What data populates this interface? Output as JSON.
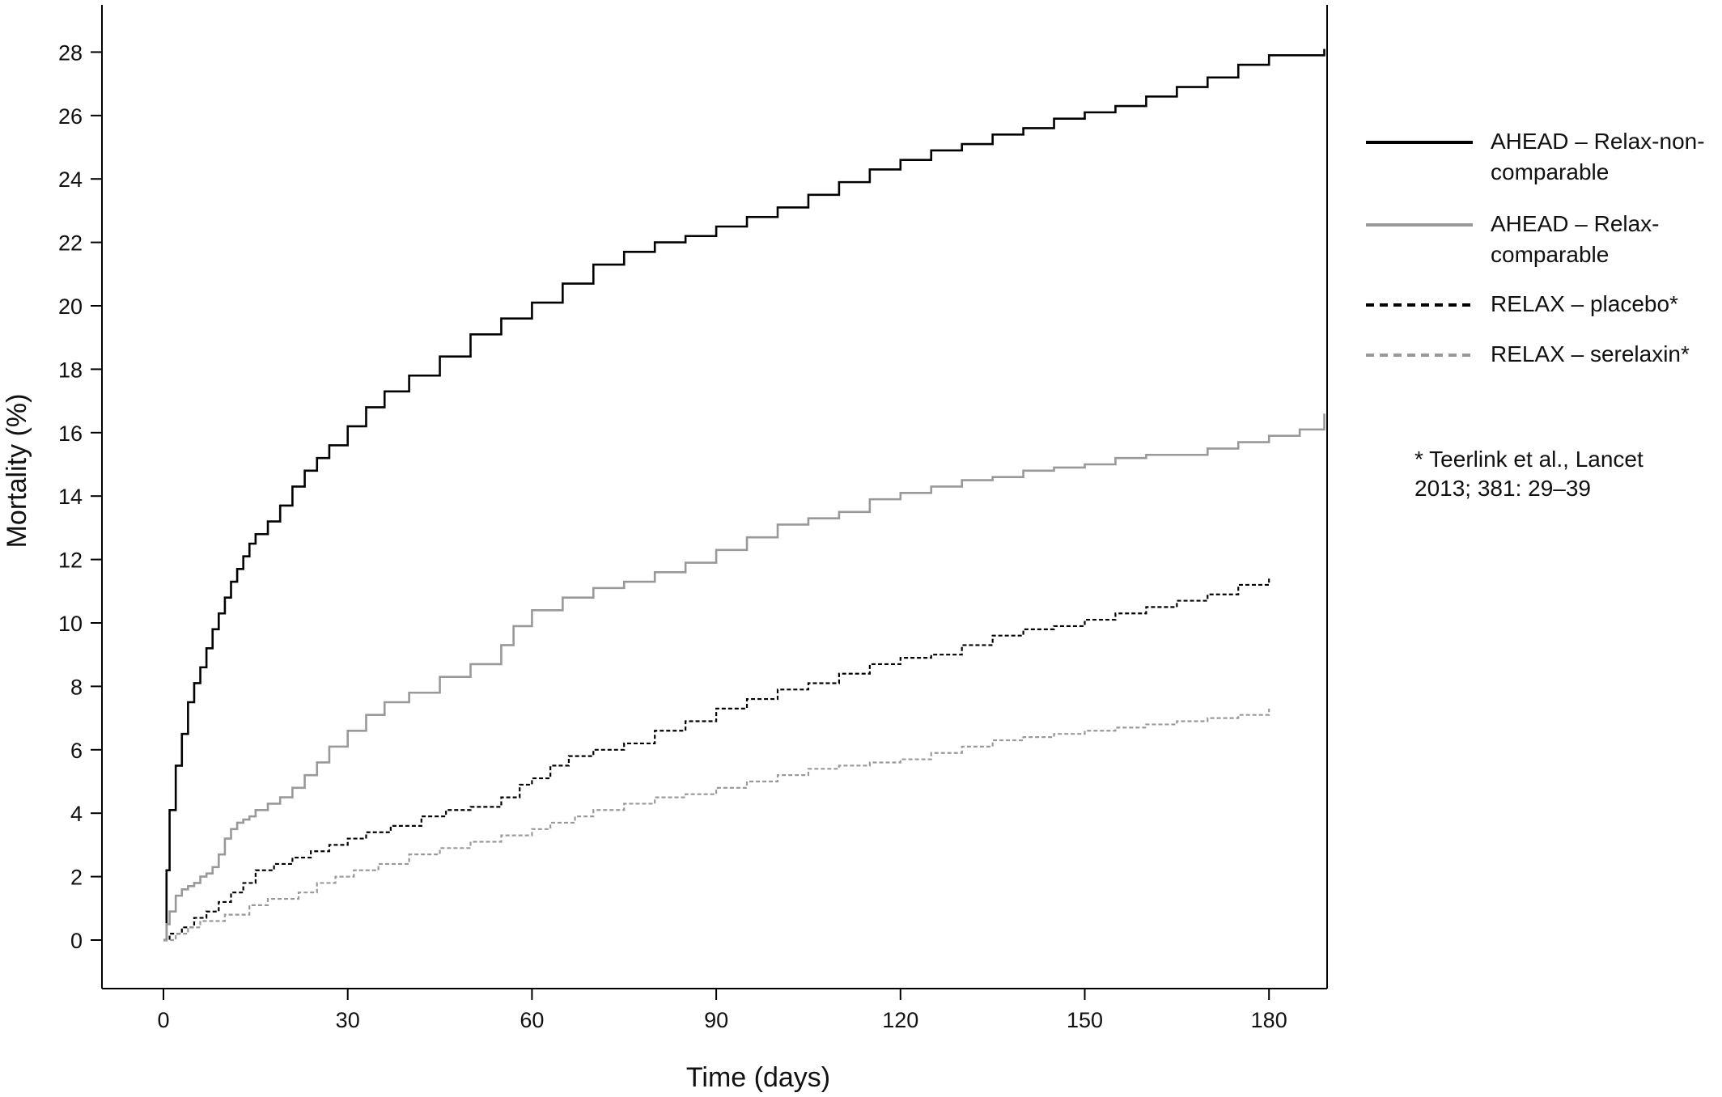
{
  "chart_data": {
    "type": "line",
    "title": "",
    "xlabel": "Time (days)",
    "ylabel": "Mortality (%)",
    "xlim": [
      -10,
      189
    ],
    "ylim": [
      -1.7,
      29.5
    ],
    "x_ticks": [
      0,
      30,
      60,
      90,
      120,
      150,
      180
    ],
    "y_ticks": [
      0,
      2,
      4,
      6,
      8,
      10,
      12,
      14,
      16,
      18,
      20,
      22,
      24,
      26,
      28
    ],
    "x_tick_labels": [
      "0",
      "30",
      "60",
      "90",
      "120",
      "150",
      "180"
    ],
    "y_tick_labels": [
      "0",
      "2",
      "4",
      "6",
      "8",
      "10",
      "12",
      "14",
      "16",
      "18",
      "20",
      "22",
      "24",
      "26",
      "28"
    ],
    "grid": false,
    "step": true,
    "legend_position": "right",
    "series": [
      {
        "name": "AHEAD – Relax-non-\ncomparable",
        "color": "#000000",
        "dash": "solid",
        "x": [
          0,
          0.5,
          1,
          2,
          3,
          4,
          5,
          6,
          7,
          8,
          9,
          10,
          11,
          12,
          13,
          14,
          15,
          17,
          19,
          21,
          23,
          25,
          27,
          30,
          33,
          36,
          40,
          45,
          50,
          55,
          60,
          65,
          70,
          75,
          80,
          85,
          90,
          95,
          100,
          105,
          110,
          115,
          120,
          125,
          130,
          135,
          140,
          145,
          150,
          155,
          160,
          165,
          170,
          175,
          180,
          189
        ],
        "y": [
          0,
          2.2,
          4.1,
          5.5,
          6.5,
          7.5,
          8.1,
          8.6,
          9.2,
          9.8,
          10.3,
          10.8,
          11.3,
          11.7,
          12.1,
          12.5,
          12.8,
          13.2,
          13.7,
          14.3,
          14.8,
          15.2,
          15.6,
          16.2,
          16.8,
          17.3,
          17.8,
          18.4,
          19.1,
          19.6,
          20.1,
          20.7,
          21.3,
          21.7,
          22.0,
          22.2,
          22.5,
          22.8,
          23.1,
          23.5,
          23.9,
          24.3,
          24.6,
          24.9,
          25.1,
          25.4,
          25.6,
          25.9,
          26.1,
          26.3,
          26.6,
          26.9,
          27.2,
          27.6,
          27.9,
          28.1
        ]
      },
      {
        "name": "AHEAD – Relax-\ncomparable",
        "color": "#999999",
        "dash": "solid",
        "x": [
          0,
          0.5,
          1,
          2,
          3,
          4,
          5,
          6,
          7,
          8,
          9,
          10,
          11,
          12,
          13,
          14,
          15,
          17,
          19,
          21,
          23,
          25,
          27,
          30,
          33,
          36,
          40,
          45,
          50,
          55,
          57,
          60,
          65,
          70,
          75,
          80,
          85,
          90,
          95,
          100,
          105,
          110,
          115,
          120,
          125,
          130,
          135,
          140,
          145,
          150,
          155,
          160,
          165,
          170,
          175,
          180,
          185,
          189
        ],
        "y": [
          0,
          0.5,
          0.9,
          1.4,
          1.6,
          1.7,
          1.8,
          2.0,
          2.1,
          2.3,
          2.7,
          3.2,
          3.5,
          3.7,
          3.8,
          3.9,
          4.1,
          4.3,
          4.5,
          4.8,
          5.2,
          5.6,
          6.1,
          6.6,
          7.1,
          7.5,
          7.8,
          8.3,
          8.7,
          9.3,
          9.9,
          10.4,
          10.8,
          11.1,
          11.3,
          11.6,
          11.9,
          12.3,
          12.7,
          13.1,
          13.3,
          13.5,
          13.9,
          14.1,
          14.3,
          14.5,
          14.6,
          14.8,
          14.9,
          15.0,
          15.2,
          15.3,
          15.3,
          15.5,
          15.7,
          15.9,
          16.1,
          16.6
        ]
      },
      {
        "name": "RELAX – placebo*",
        "color": "#000000",
        "dash": "dashed",
        "x": [
          0,
          1,
          3,
          5,
          7,
          9,
          11,
          13,
          15,
          18,
          21,
          24,
          27,
          30,
          33,
          37,
          42,
          46,
          50,
          55,
          58,
          60,
          63,
          66,
          70,
          75,
          80,
          85,
          90,
          95,
          100,
          105,
          110,
          115,
          120,
          125,
          130,
          135,
          140,
          145,
          150,
          155,
          160,
          165,
          170,
          175,
          180
        ],
        "y": [
          0,
          0.2,
          0.4,
          0.7,
          0.9,
          1.2,
          1.5,
          1.8,
          2.2,
          2.4,
          2.6,
          2.8,
          3.0,
          3.2,
          3.4,
          3.6,
          3.9,
          4.1,
          4.2,
          4.5,
          4.9,
          5.1,
          5.5,
          5.8,
          6.0,
          6.2,
          6.6,
          6.9,
          7.3,
          7.6,
          7.9,
          8.1,
          8.4,
          8.7,
          8.9,
          9.0,
          9.3,
          9.6,
          9.8,
          9.9,
          10.1,
          10.3,
          10.5,
          10.7,
          10.9,
          11.2,
          11.4
        ]
      },
      {
        "name": "RELAX – serelaxin*",
        "color": "#999999",
        "dash": "dashed",
        "x": [
          0,
          2,
          4,
          6,
          10,
          14,
          17,
          22,
          25,
          28,
          31,
          35,
          40,
          45,
          50,
          55,
          60,
          63,
          67,
          70,
          75,
          80,
          85,
          90,
          95,
          100,
          105,
          110,
          115,
          120,
          125,
          130,
          135,
          140,
          145,
          150,
          155,
          160,
          165,
          170,
          175,
          180
        ],
        "y": [
          0,
          0.2,
          0.4,
          0.6,
          0.8,
          1.1,
          1.3,
          1.5,
          1.8,
          2.0,
          2.2,
          2.4,
          2.7,
          2.9,
          3.1,
          3.3,
          3.5,
          3.7,
          3.9,
          4.1,
          4.3,
          4.5,
          4.6,
          4.8,
          5.0,
          5.2,
          5.4,
          5.5,
          5.6,
          5.7,
          5.9,
          6.1,
          6.3,
          6.4,
          6.5,
          6.6,
          6.7,
          6.8,
          6.9,
          7.0,
          7.1,
          7.3
        ]
      }
    ],
    "annotations": [
      "* Teerlink et al., Lancet\n2013; 381: 29–39"
    ]
  }
}
